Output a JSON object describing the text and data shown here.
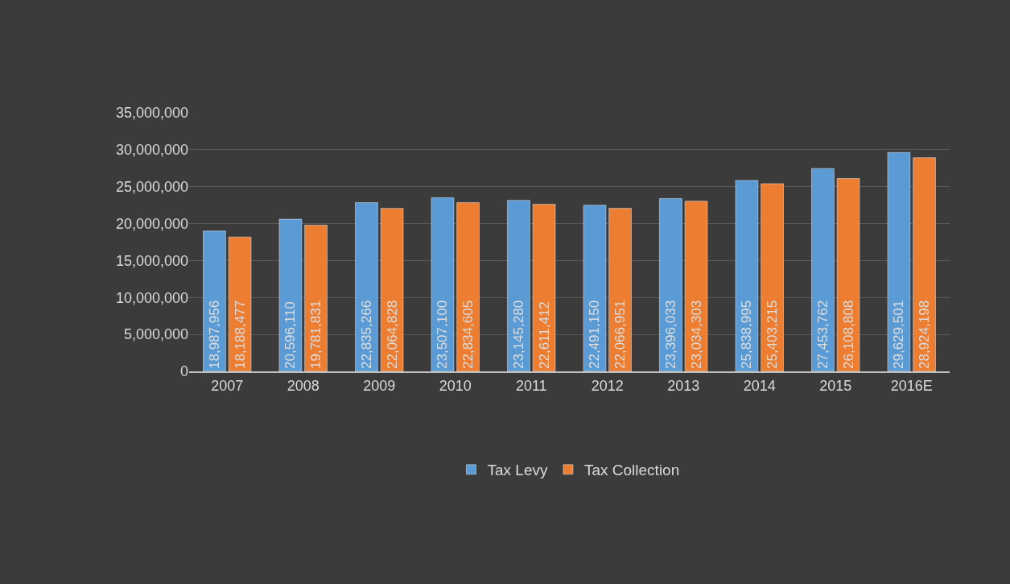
{
  "chart_data": {
    "type": "bar",
    "categories": [
      "2007",
      "2008",
      "2009",
      "2010",
      "2011",
      "2012",
      "2013",
      "2014",
      "2015",
      "2016E"
    ],
    "series": [
      {
        "name": "Tax Levy",
        "color": "#5b9bd5",
        "values": [
          18987956,
          20596110,
          22835266,
          23507100,
          23145280,
          22491150,
          23396033,
          25838995,
          27453762,
          29629501
        ],
        "value_labels": [
          "18,987,956",
          "20,596,110",
          "22,835,266",
          "23,507,100",
          "23,145,280",
          "22,491,150",
          "23,396,033",
          "25,838,995",
          "27,453,762",
          "29,629,501"
        ]
      },
      {
        "name": "Tax Collection",
        "color": "#ed7d31",
        "values": [
          18188477,
          19781831,
          22064828,
          22834605,
          22611412,
          22066951,
          23034303,
          25403215,
          26108808,
          28924198
        ],
        "value_labels": [
          "18,188,477",
          "19,781,831",
          "22,064,828",
          "22,834,605",
          "22,611,412",
          "22,066,951",
          "23,034,303",
          "25,403,215",
          "26,108,808",
          "28,924,198"
        ]
      }
    ],
    "ylim": [
      0,
      35000000
    ],
    "yticks": [
      {
        "value": 0,
        "label": "0"
      },
      {
        "value": 5000000,
        "label": "5,000,000"
      },
      {
        "value": 10000000,
        "label": "10,000,000"
      },
      {
        "value": 15000000,
        "label": "15,000,000"
      },
      {
        "value": 20000000,
        "label": "20,000,000"
      },
      {
        "value": 25000000,
        "label": "25,000,000"
      },
      {
        "value": 30000000,
        "label": "30,000,000"
      },
      {
        "value": 35000000,
        "label": "35,000,000"
      }
    ],
    "grid": "y",
    "legend": "bottom"
  }
}
